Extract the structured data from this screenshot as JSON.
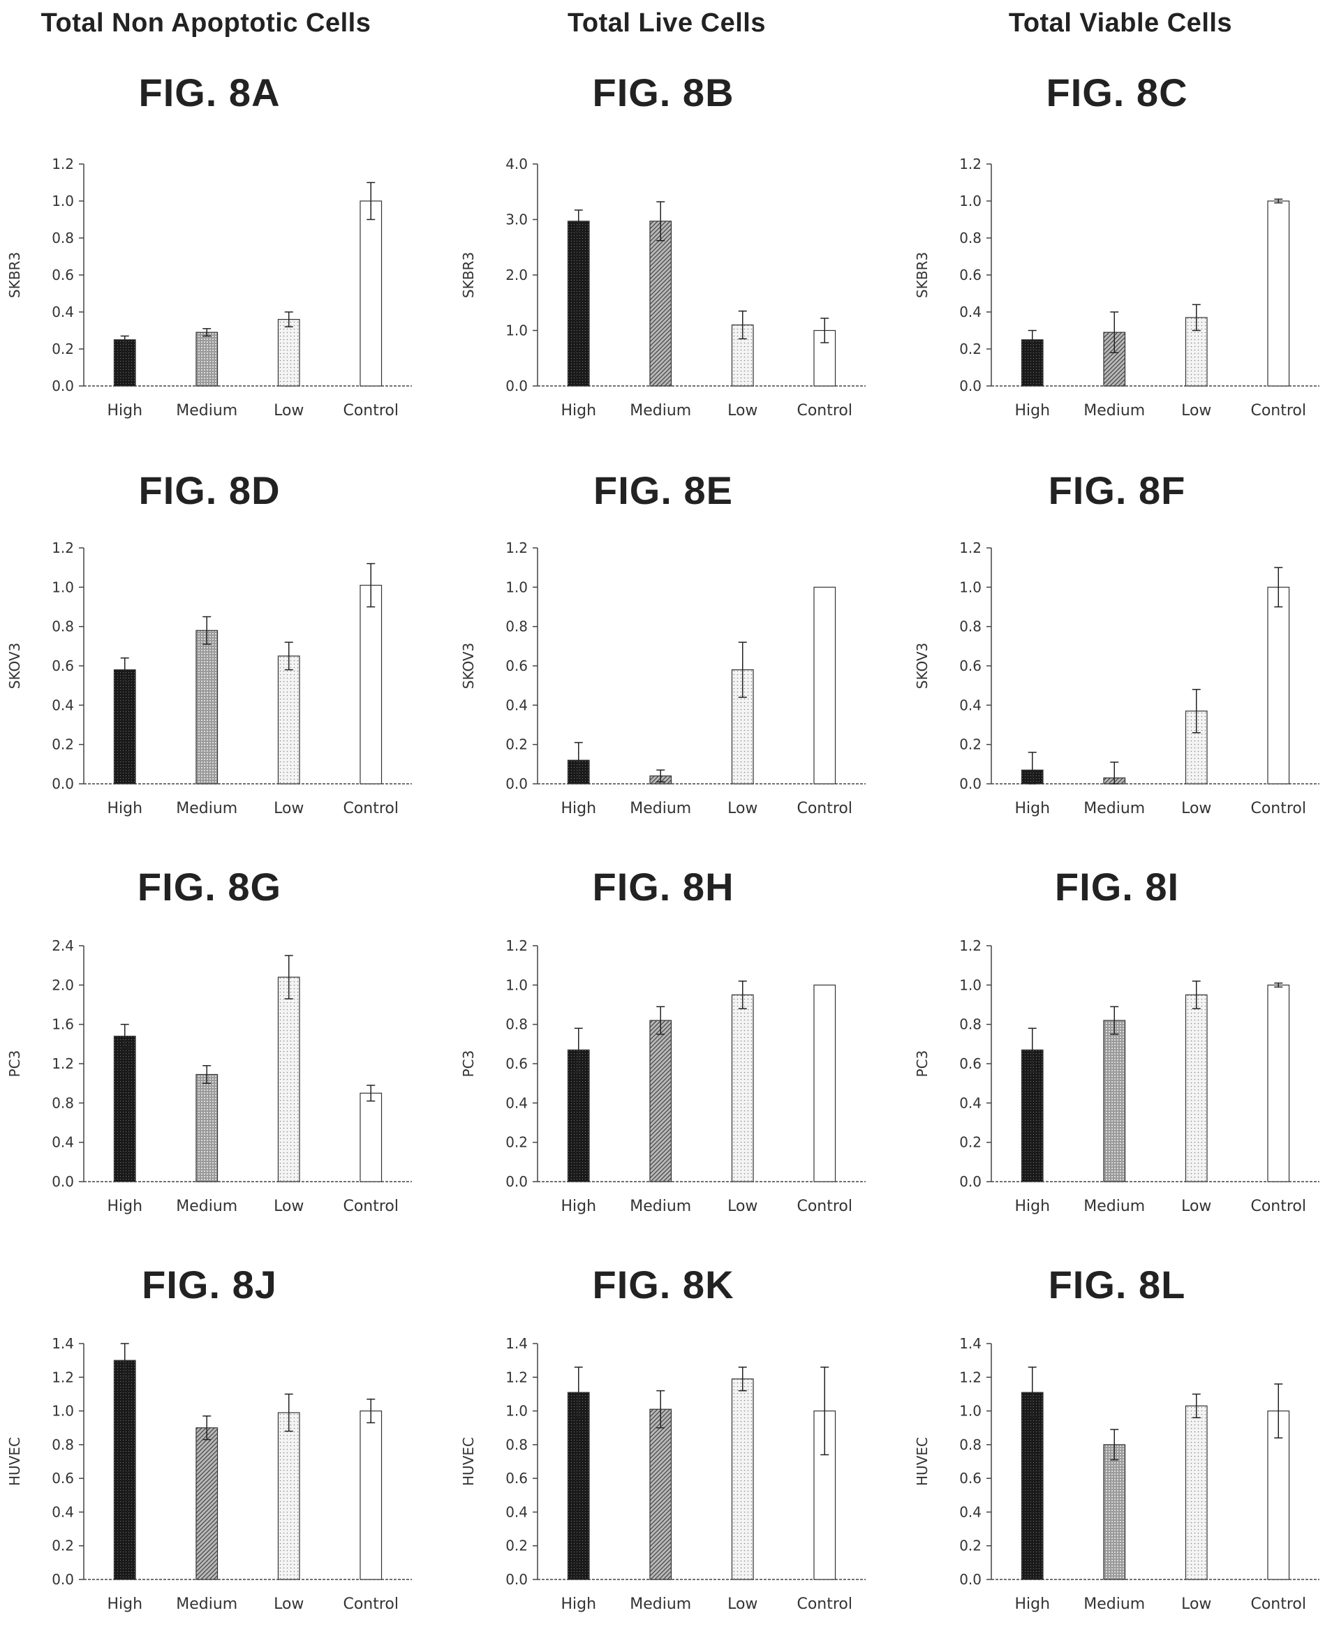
{
  "column_headers": [
    "Total Non Apoptotic Cells",
    "Total Live Cells",
    "Total Viable Cells"
  ],
  "chart_data": [
    {
      "type": "bar",
      "figure": "FIG. 8A",
      "ylabel": "SKBR3",
      "categories": [
        "High",
        "Medium",
        "Low",
        "Control"
      ],
      "values": [
        0.25,
        0.29,
        0.36,
        1.0
      ],
      "errors": [
        0.02,
        0.02,
        0.04,
        0.1
      ],
      "yticks": [
        "0.0",
        "0.2",
        "0.4",
        "0.6",
        "0.8",
        "1.0",
        "1.2"
      ],
      "ylim": [
        0,
        1.2
      ],
      "fills": [
        "dark",
        "dots-medium",
        "dots-light",
        "white"
      ]
    },
    {
      "type": "bar",
      "figure": "FIG. 8B",
      "ylabel": "SKBR3",
      "categories": [
        "High",
        "Medium",
        "Low",
        "Control"
      ],
      "values": [
        2.97,
        2.97,
        1.1,
        1.0
      ],
      "errors": [
        0.2,
        0.35,
        0.25,
        0.22
      ],
      "yticks": [
        "0.0",
        "1.0",
        "2.0",
        "3.0",
        "4.0"
      ],
      "ylim": [
        0,
        4.0
      ],
      "fills": [
        "dark",
        "hatch-medium",
        "dots-light",
        "white"
      ]
    },
    {
      "type": "bar",
      "figure": "FIG. 8C",
      "ylabel": "SKBR3",
      "categories": [
        "High",
        "Medium",
        "Low",
        "Control"
      ],
      "values": [
        0.25,
        0.29,
        0.37,
        1.0
      ],
      "errors": [
        0.05,
        0.11,
        0.07,
        0.01
      ],
      "yticks": [
        "0.0",
        "0.2",
        "0.4",
        "0.6",
        "0.8",
        "1.0",
        "1.2"
      ],
      "ylim": [
        0,
        1.2
      ],
      "fills": [
        "dark",
        "hatch-medium",
        "dots-light",
        "white"
      ]
    },
    {
      "type": "bar",
      "figure": "FIG. 8D",
      "ylabel": "SKOV3",
      "categories": [
        "High",
        "Medium",
        "Low",
        "Control"
      ],
      "values": [
        0.58,
        0.78,
        0.65,
        1.01
      ],
      "errors": [
        0.06,
        0.07,
        0.07,
        0.11
      ],
      "yticks": [
        "0.0",
        "0.2",
        "0.4",
        "0.6",
        "0.8",
        "1.0",
        "1.2"
      ],
      "ylim": [
        0,
        1.2
      ],
      "fills": [
        "dark",
        "dots-medium",
        "dots-light",
        "white"
      ]
    },
    {
      "type": "bar",
      "figure": "FIG. 8E",
      "ylabel": "SKOV3",
      "categories": [
        "High",
        "Medium",
        "Low",
        "Control"
      ],
      "values": [
        0.12,
        0.04,
        0.58,
        1.0
      ],
      "errors": [
        0.09,
        0.03,
        0.14,
        0.0
      ],
      "yticks": [
        "0.0",
        "0.2",
        "0.4",
        "0.6",
        "0.8",
        "1.0",
        "1.2"
      ],
      "ylim": [
        0,
        1.2
      ],
      "fills": [
        "dark",
        "hatch-medium",
        "dots-light",
        "white"
      ]
    },
    {
      "type": "bar",
      "figure": "FIG. 8F",
      "ylabel": "SKOV3",
      "categories": [
        "High",
        "Medium",
        "Low",
        "Control"
      ],
      "values": [
        0.07,
        0.03,
        0.37,
        1.0
      ],
      "errors": [
        0.09,
        0.08,
        0.11,
        0.1
      ],
      "yticks": [
        "0.0",
        "0.2",
        "0.4",
        "0.6",
        "0.8",
        "1.0",
        "1.2"
      ],
      "ylim": [
        0,
        1.2
      ],
      "fills": [
        "dark",
        "hatch-medium",
        "dots-light",
        "white"
      ]
    },
    {
      "type": "bar",
      "figure": "FIG. 8G",
      "ylabel": "PC3",
      "categories": [
        "High",
        "Medium",
        "Low",
        "Control"
      ],
      "values": [
        1.48,
        1.09,
        2.08,
        0.9
      ],
      "errors": [
        0.12,
        0.09,
        0.22,
        0.08
      ],
      "yticks": [
        "0.0",
        "0.4",
        "0.8",
        "1.2",
        "1.6",
        "2.0",
        "2.4"
      ],
      "ylim": [
        0,
        2.4
      ],
      "fills": [
        "dark",
        "dots-medium",
        "dots-light",
        "white"
      ]
    },
    {
      "type": "bar",
      "figure": "FIG. 8H",
      "ylabel": "PC3",
      "categories": [
        "High",
        "Medium",
        "Low",
        "Control"
      ],
      "values": [
        0.67,
        0.82,
        0.95,
        1.0
      ],
      "errors": [
        0.11,
        0.07,
        0.07,
        0.0
      ],
      "yticks": [
        "0.0",
        "0.2",
        "0.4",
        "0.6",
        "0.8",
        "1.0",
        "1.2"
      ],
      "ylim": [
        0,
        1.2
      ],
      "fills": [
        "dark",
        "hatch-medium",
        "dots-light",
        "white"
      ]
    },
    {
      "type": "bar",
      "figure": "FIG. 8I",
      "ylabel": "PC3",
      "categories": [
        "High",
        "Medium",
        "Low",
        "Control"
      ],
      "values": [
        0.67,
        0.82,
        0.95,
        1.0
      ],
      "errors": [
        0.11,
        0.07,
        0.07,
        0.01
      ],
      "yticks": [
        "0.0",
        "0.2",
        "0.4",
        "0.6",
        "0.8",
        "1.0",
        "1.2"
      ],
      "ylim": [
        0,
        1.2
      ],
      "fills": [
        "dark",
        "dots-medium",
        "dots-light",
        "white"
      ]
    },
    {
      "type": "bar",
      "figure": "FIG. 8J",
      "ylabel": "HUVEC",
      "categories": [
        "High",
        "Medium",
        "Low",
        "Control"
      ],
      "values": [
        1.3,
        0.9,
        0.99,
        1.0
      ],
      "errors": [
        0.1,
        0.07,
        0.11,
        0.07
      ],
      "yticks": [
        "0.0",
        "0.2",
        "0.4",
        "0.6",
        "0.8",
        "1.0",
        "1.2",
        "1.4"
      ],
      "ylim": [
        0,
        1.4
      ],
      "fills": [
        "dark",
        "hatch-medium",
        "dots-light",
        "white"
      ]
    },
    {
      "type": "bar",
      "figure": "FIG. 8K",
      "ylabel": "HUVEC",
      "categories": [
        "High",
        "Medium",
        "Low",
        "Control"
      ],
      "values": [
        1.11,
        1.01,
        1.19,
        1.0
      ],
      "errors": [
        0.15,
        0.11,
        0.07,
        0.26
      ],
      "yticks": [
        "0.0",
        "0.2",
        "0.4",
        "0.6",
        "0.8",
        "1.0",
        "1.2",
        "1.4"
      ],
      "ylim": [
        0,
        1.4
      ],
      "fills": [
        "dark",
        "hatch-medium",
        "dots-light",
        "white"
      ]
    },
    {
      "type": "bar",
      "figure": "FIG. 8L",
      "ylabel": "HUVEC",
      "categories": [
        "High",
        "Medium",
        "Low",
        "Control"
      ],
      "values": [
        1.11,
        0.8,
        1.03,
        1.0
      ],
      "errors": [
        0.15,
        0.09,
        0.07,
        0.16
      ],
      "yticks": [
        "0.0",
        "0.2",
        "0.4",
        "0.6",
        "0.8",
        "1.0",
        "1.2",
        "1.4"
      ],
      "ylim": [
        0,
        1.4
      ],
      "fills": [
        "dark",
        "dots-medium",
        "dots-light",
        "white"
      ]
    }
  ]
}
